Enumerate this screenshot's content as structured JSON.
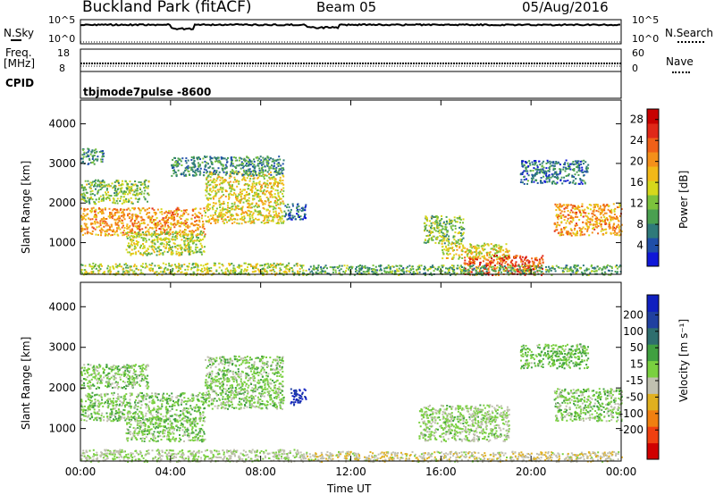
{
  "header": {
    "station": "Buckland Park (fitACF)",
    "beam": "Beam 05",
    "date": "05/Aug/2016"
  },
  "strip": {
    "nsky_label": "N.Sky",
    "nsearch_label": "N.Search",
    "noise_ticks": [
      "10^5",
      "10^0"
    ],
    "freq_label_1": "Freq.",
    "freq_label_2": "[MHz]",
    "freq_ticks": [
      "18",
      "8"
    ],
    "nave_label": "Nave",
    "nave_ticks": [
      "60",
      "0"
    ],
    "cpid_label": "CPID",
    "cpid_value": "tbjmode7pulse -8600"
  },
  "chart_data": [
    {
      "type": "heatmap",
      "title": "",
      "xlabel": "Time UT",
      "ylabel": "Slant Range [km]",
      "x_ticks": [
        "00:00",
        "04:00",
        "08:00",
        "12:00",
        "16:00",
        "20:00",
        "00:00"
      ],
      "y_ticks": [
        1000,
        2000,
        3000,
        4000
      ],
      "xlim_hours": [
        0,
        24
      ],
      "ylim": [
        200,
        4600
      ],
      "colorbar": {
        "label": "Power [dB]",
        "ticks": [
          4,
          8,
          12,
          16,
          20,
          24,
          28
        ],
        "range": [
          0,
          30
        ],
        "colors": [
          "#1018d8",
          "#1f4fa8",
          "#2f7a7a",
          "#4aa050",
          "#7cc23c",
          "#d6d81c",
          "#f2b818",
          "#f4901a",
          "#f06018",
          "#e02818",
          "#c80000"
        ]
      },
      "echo_regions": [
        {
          "t": [
            0.0,
            10.0
          ],
          "range": [
            200,
            500
          ],
          "value": 14
        },
        {
          "t": [
            0.0,
            5.5
          ],
          "range": [
            1200,
            1900
          ],
          "value": 20
        },
        {
          "t": [
            2.0,
            5.5
          ],
          "range": [
            700,
            1300
          ],
          "value": 14
        },
        {
          "t": [
            5.5,
            9.0
          ],
          "range": [
            1500,
            2800
          ],
          "value": 16
        },
        {
          "t": [
            9.0,
            10.0
          ],
          "range": [
            1600,
            2000
          ],
          "value": 6
        },
        {
          "t": [
            0.0,
            3.0
          ],
          "range": [
            2000,
            2600
          ],
          "value": 12
        },
        {
          "t": [
            4.0,
            9.0
          ],
          "range": [
            2700,
            3200
          ],
          "value": 8
        },
        {
          "t": [
            15.2,
            17.0
          ],
          "range": [
            1000,
            1700
          ],
          "value": 12
        },
        {
          "t": [
            16.0,
            19.0
          ],
          "range": [
            600,
            1000
          ],
          "value": 16
        },
        {
          "t": [
            17.0,
            20.5
          ],
          "range": [
            200,
            700
          ],
          "value": 24
        },
        {
          "t": [
            10.0,
            24.0
          ],
          "range": [
            200,
            450
          ],
          "value": 10
        },
        {
          "t": [
            21.0,
            24.0
          ],
          "range": [
            1200,
            2000
          ],
          "value": 20
        },
        {
          "t": [
            19.5,
            22.5
          ],
          "range": [
            2500,
            3100
          ],
          "value": 6
        },
        {
          "t": [
            0.0,
            1.0
          ],
          "range": [
            3000,
            3400
          ],
          "value": 8
        }
      ]
    },
    {
      "type": "heatmap",
      "title": "",
      "xlabel": "Time UT",
      "ylabel": "Slant Range [km]",
      "x_ticks": [
        "00:00",
        "04:00",
        "08:00",
        "12:00",
        "16:00",
        "20:00",
        "00:00"
      ],
      "y_ticks": [
        1000,
        2000,
        3000,
        4000
      ],
      "xlim_hours": [
        0,
        24
      ],
      "ylim": [
        200,
        4600
      ],
      "colorbar": {
        "label": "Velocity [m s⁻¹]",
        "ticks": [
          200,
          100,
          50,
          15,
          -15,
          -50,
          -100,
          -200
        ],
        "colors": [
          "#1020c0",
          "#2040a0",
          "#2e6e6e",
          "#40a040",
          "#7ad040",
          "#c0c0b0",
          "#e0b020",
          "#f08010",
          "#f04010",
          "#d00000"
        ]
      },
      "echo_regions": [
        {
          "t": [
            0.0,
            10.0
          ],
          "range": [
            200,
            500
          ],
          "value": -20
        },
        {
          "t": [
            0.0,
            5.5
          ],
          "range": [
            1200,
            1900
          ],
          "value": 0
        },
        {
          "t": [
            2.0,
            5.5
          ],
          "range": [
            700,
            1300
          ],
          "value": 0
        },
        {
          "t": [
            5.5,
            9.0
          ],
          "range": [
            1500,
            2800
          ],
          "value": 0
        },
        {
          "t": [
            9.3,
            10.0
          ],
          "range": [
            1600,
            2000
          ],
          "value": 200
        },
        {
          "t": [
            0.0,
            3.0
          ],
          "range": [
            2000,
            2600
          ],
          "value": 0
        },
        {
          "t": [
            15.0,
            19.0
          ],
          "range": [
            700,
            1600
          ],
          "value": -10
        },
        {
          "t": [
            10.0,
            24.0
          ],
          "range": [
            200,
            450
          ],
          "value": -40
        },
        {
          "t": [
            21.0,
            24.0
          ],
          "range": [
            1200,
            2000
          ],
          "value": 0
        },
        {
          "t": [
            19.5,
            22.5
          ],
          "range": [
            2500,
            3100
          ],
          "value": 10
        }
      ]
    }
  ]
}
